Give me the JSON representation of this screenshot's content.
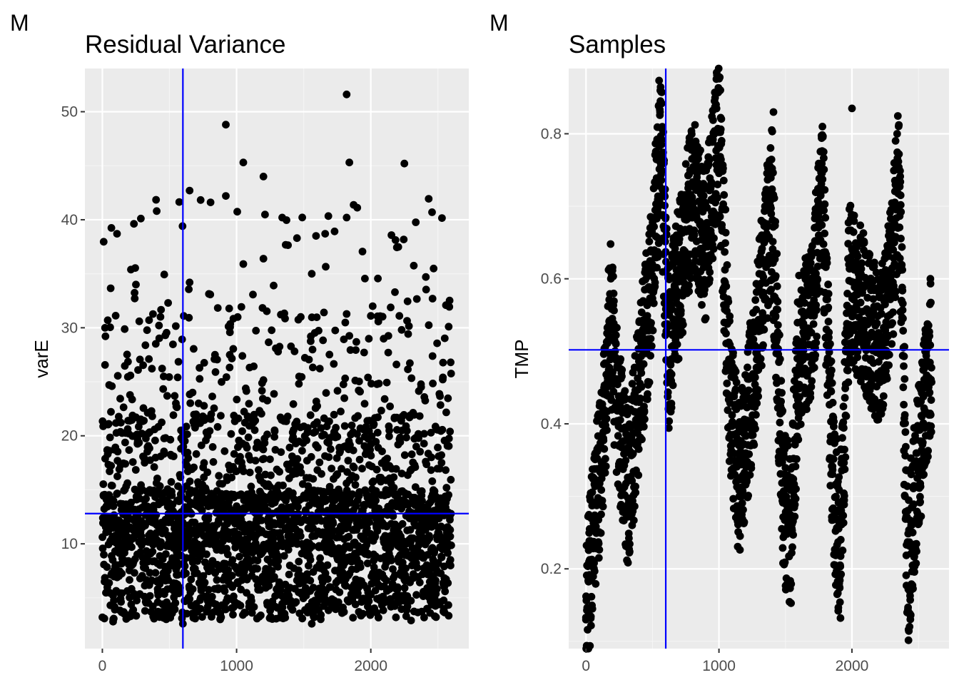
{
  "chart_data": [
    {
      "type": "scatter",
      "tag": "M",
      "title": "Residual Variance",
      "xlabel": "",
      "ylabel": "varE",
      "xlim": [
        -130,
        2730
      ],
      "ylim": [
        0.3,
        54.0
      ],
      "x_ticks": [
        0,
        1000,
        2000
      ],
      "y_ticks": [
        10,
        20,
        30,
        40,
        50
      ],
      "grid": true,
      "panel_background": "#ebebeb",
      "point_color": "#000000",
      "reference_line_color": "#0000ff",
      "vline_x": 600,
      "hline_y": 12.8,
      "x_count": 2600,
      "notable_points": [
        {
          "x": 1820,
          "y": 51.6
        },
        {
          "x": 920,
          "y": 48.8
        },
        {
          "x": 1840,
          "y": 45.3
        },
        {
          "x": 1050,
          "y": 45.3
        },
        {
          "x": 2250,
          "y": 45.2
        },
        {
          "x": 1200,
          "y": 44.0
        },
        {
          "x": 650,
          "y": 42.7
        },
        {
          "x": 920,
          "y": 42.2
        },
        {
          "x": 1340,
          "y": 40.2
        },
        {
          "x": 1820,
          "y": 40.2
        },
        {
          "x": 1450,
          "y": 38.3
        },
        {
          "x": 1660,
          "y": 38.7
        },
        {
          "x": 1200,
          "y": 36.4
        },
        {
          "x": 1050,
          "y": 35.9
        },
        {
          "x": 1560,
          "y": 35.0
        },
        {
          "x": 650,
          "y": 34.2
        },
        {
          "x": 250,
          "y": 34.0
        },
        {
          "x": 2180,
          "y": 33.3
        },
        {
          "x": 2460,
          "y": 32.7
        },
        {
          "x": 490,
          "y": 32.3
        },
        {
          "x": 40,
          "y": 30.7
        },
        {
          "x": 2000,
          "y": 31.1
        },
        {
          "x": 20,
          "y": 30.0
        },
        {
          "x": 2580,
          "y": 30.1
        },
        {
          "x": 600,
          "y": 2.6
        },
        {
          "x": 1560,
          "y": 2.6
        },
        {
          "x": 2300,
          "y": 2.9
        },
        {
          "x": 80,
          "y": 2.8
        }
      ]
    },
    {
      "type": "scatter",
      "tag": "M",
      "title": "Samples",
      "xlabel": "",
      "ylabel": "TMP",
      "xlim": [
        -130,
        2730
      ],
      "ylim": [
        0.09,
        0.89
      ],
      "x_ticks": [
        0,
        1000,
        2000
      ],
      "y_ticks": [
        0.2,
        0.4,
        0.6,
        0.8
      ],
      "grid": true,
      "panel_background": "#ebebeb",
      "point_color": "#000000",
      "reference_line_color": "#0000ff",
      "vline_x": 600,
      "hline_y": 0.502,
      "x_count": 2600,
      "trace_shape": [
        {
          "x": 0,
          "y": 0.13
        },
        {
          "x": 40,
          "y": 0.22
        },
        {
          "x": 80,
          "y": 0.3
        },
        {
          "x": 120,
          "y": 0.34
        },
        {
          "x": 180,
          "y": 0.55
        },
        {
          "x": 250,
          "y": 0.4
        },
        {
          "x": 320,
          "y": 0.3
        },
        {
          "x": 400,
          "y": 0.45
        },
        {
          "x": 500,
          "y": 0.6
        },
        {
          "x": 560,
          "y": 0.8
        },
        {
          "x": 620,
          "y": 0.5
        },
        {
          "x": 700,
          "y": 0.6
        },
        {
          "x": 800,
          "y": 0.72
        },
        {
          "x": 900,
          "y": 0.65
        },
        {
          "x": 1000,
          "y": 0.8
        },
        {
          "x": 1080,
          "y": 0.45
        },
        {
          "x": 1150,
          "y": 0.32
        },
        {
          "x": 1250,
          "y": 0.45
        },
        {
          "x": 1330,
          "y": 0.6
        },
        {
          "x": 1400,
          "y": 0.7
        },
        {
          "x": 1480,
          "y": 0.3
        },
        {
          "x": 1540,
          "y": 0.25
        },
        {
          "x": 1600,
          "y": 0.5
        },
        {
          "x": 1700,
          "y": 0.55
        },
        {
          "x": 1780,
          "y": 0.72
        },
        {
          "x": 1850,
          "y": 0.35
        },
        {
          "x": 1910,
          "y": 0.22
        },
        {
          "x": 1980,
          "y": 0.6
        },
        {
          "x": 2100,
          "y": 0.55
        },
        {
          "x": 2200,
          "y": 0.5
        },
        {
          "x": 2300,
          "y": 0.6
        },
        {
          "x": 2350,
          "y": 0.75
        },
        {
          "x": 2420,
          "y": 0.2
        },
        {
          "x": 2500,
          "y": 0.35
        },
        {
          "x": 2600,
          "y": 0.5
        }
      ],
      "notable_points": [
        {
          "x": 1000,
          "y": 0.86
        },
        {
          "x": 560,
          "y": 0.845
        },
        {
          "x": 2000,
          "y": 0.835
        },
        {
          "x": 1410,
          "y": 0.83
        },
        {
          "x": 2340,
          "y": 0.8
        },
        {
          "x": 0,
          "y": 0.13
        },
        {
          "x": 20,
          "y": 0.14
        },
        {
          "x": 2440,
          "y": 0.17
        },
        {
          "x": 1910,
          "y": 0.19
        },
        {
          "x": 2590,
          "y": 0.6
        }
      ]
    }
  ]
}
